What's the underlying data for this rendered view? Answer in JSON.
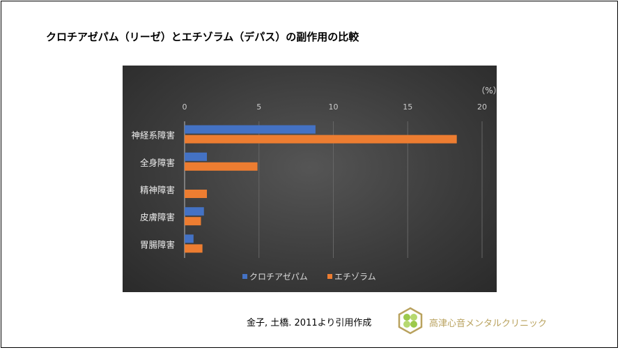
{
  "title": "クロチアゼパム（リーゼ）とエチゾラム（デパス）の副作用の比較",
  "chart_data": {
    "type": "bar",
    "orientation": "horizontal",
    "unit_label": "（%）",
    "categories": [
      "神経系障害",
      "全身障害",
      "精神障害",
      "皮膚障害",
      "胃腸障害"
    ],
    "series": [
      {
        "name": "クロチアゼパム",
        "color": "#4472c4",
        "values": [
          8.8,
          1.5,
          0,
          1.3,
          0.6
        ]
      },
      {
        "name": "エチゾラム",
        "color": "#ed7d31",
        "values": [
          18.3,
          4.9,
          1.5,
          1.1,
          1.2
        ]
      }
    ],
    "xlim": [
      0,
      20
    ],
    "xticks": [
      0,
      5,
      10,
      15,
      20
    ],
    "grid": true,
    "legend_position": "bottom",
    "background": "#3c3c3c"
  },
  "source": "金子, 土橋. 2011より引用作成",
  "clinic_name": "高津心音メンタルクリニック"
}
